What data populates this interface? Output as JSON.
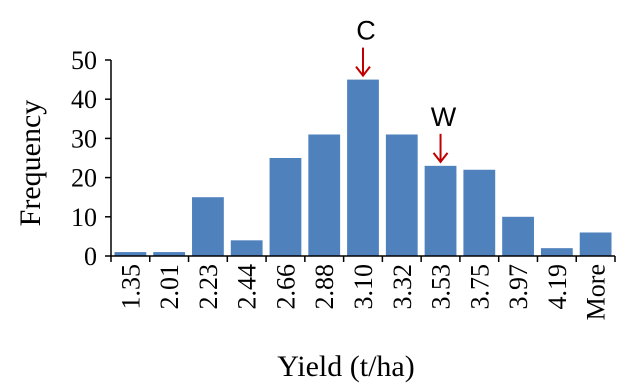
{
  "chart_data": {
    "type": "bar",
    "categories": [
      "1.35",
      "2.01",
      "2.23",
      "2.44",
      "2.66",
      "2.88",
      "3.10",
      "3.32",
      "3.53",
      "3.75",
      "3.97",
      "4.19",
      "More"
    ],
    "values": [
      1,
      1,
      15,
      4,
      25,
      31,
      45,
      31,
      23,
      22,
      10,
      2,
      6
    ],
    "xlabel": "Yield (t/ha)",
    "ylabel": "Frequency",
    "ylim": [
      0,
      50
    ],
    "yticks": [
      0,
      10,
      20,
      30,
      40,
      50
    ],
    "annotations": [
      {
        "text": "C",
        "category": "3.10",
        "color": "#c00000"
      },
      {
        "text": "W",
        "category": "3.53",
        "color": "#c00000"
      }
    ],
    "bar_color": "#4f81bd",
    "grid": false,
    "legend": "none"
  }
}
